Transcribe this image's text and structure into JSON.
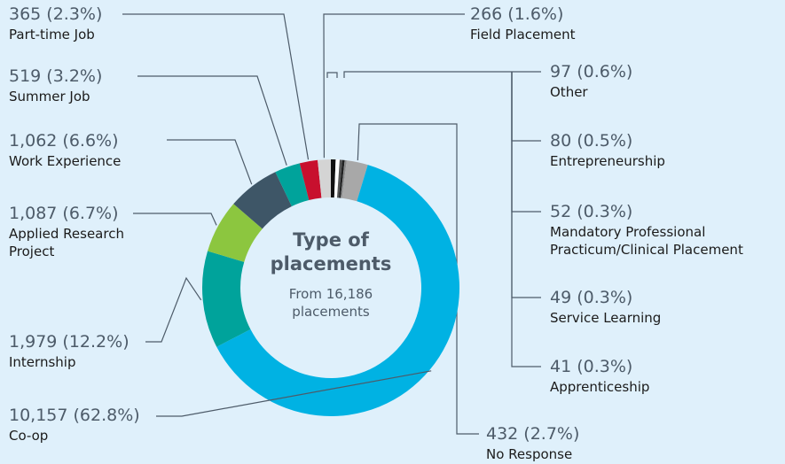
{
  "chart_data": {
    "type": "donut",
    "title": "Type of placements",
    "subtitle": "From 16,186 placements",
    "categories": [
      "Other",
      "Entrepreneurship",
      "Mandatory Professional Practicum/Clinical Placement",
      "Service Learning",
      "Apprenticeship",
      "No Response",
      "Co-op",
      "Internship",
      "Applied Research Project",
      "Work Experience",
      "Summer Job",
      "Part-time Job",
      "Field Placement"
    ],
    "values": [
      97,
      80,
      52,
      49,
      41,
      432,
      10157,
      1979,
      1087,
      1062,
      519,
      365,
      266
    ],
    "value_labels": [
      "97 (0.6%)",
      "80 (0.5%)",
      "52 (0.3%)",
      "49 (0.3%)",
      "41 (0.3%)",
      "432 (2.7%)",
      "10,157 (62.8%)",
      "1,979 (12.2%)",
      "1,087 (6.7%)",
      "1,062 (6.6%)",
      "519 (3.2%)",
      "365 (2.3%)",
      "266 (1.6%)"
    ],
    "colors": [
      "#111111",
      "#ffffff",
      "#555555",
      "#222222",
      "#8a8a8a",
      "#a8a8a8",
      "#00b2e3",
      "#00a39b",
      "#8cc63f",
      "#3e5667",
      "#00a39b",
      "#c8102e",
      "#d4d4d4"
    ]
  }
}
